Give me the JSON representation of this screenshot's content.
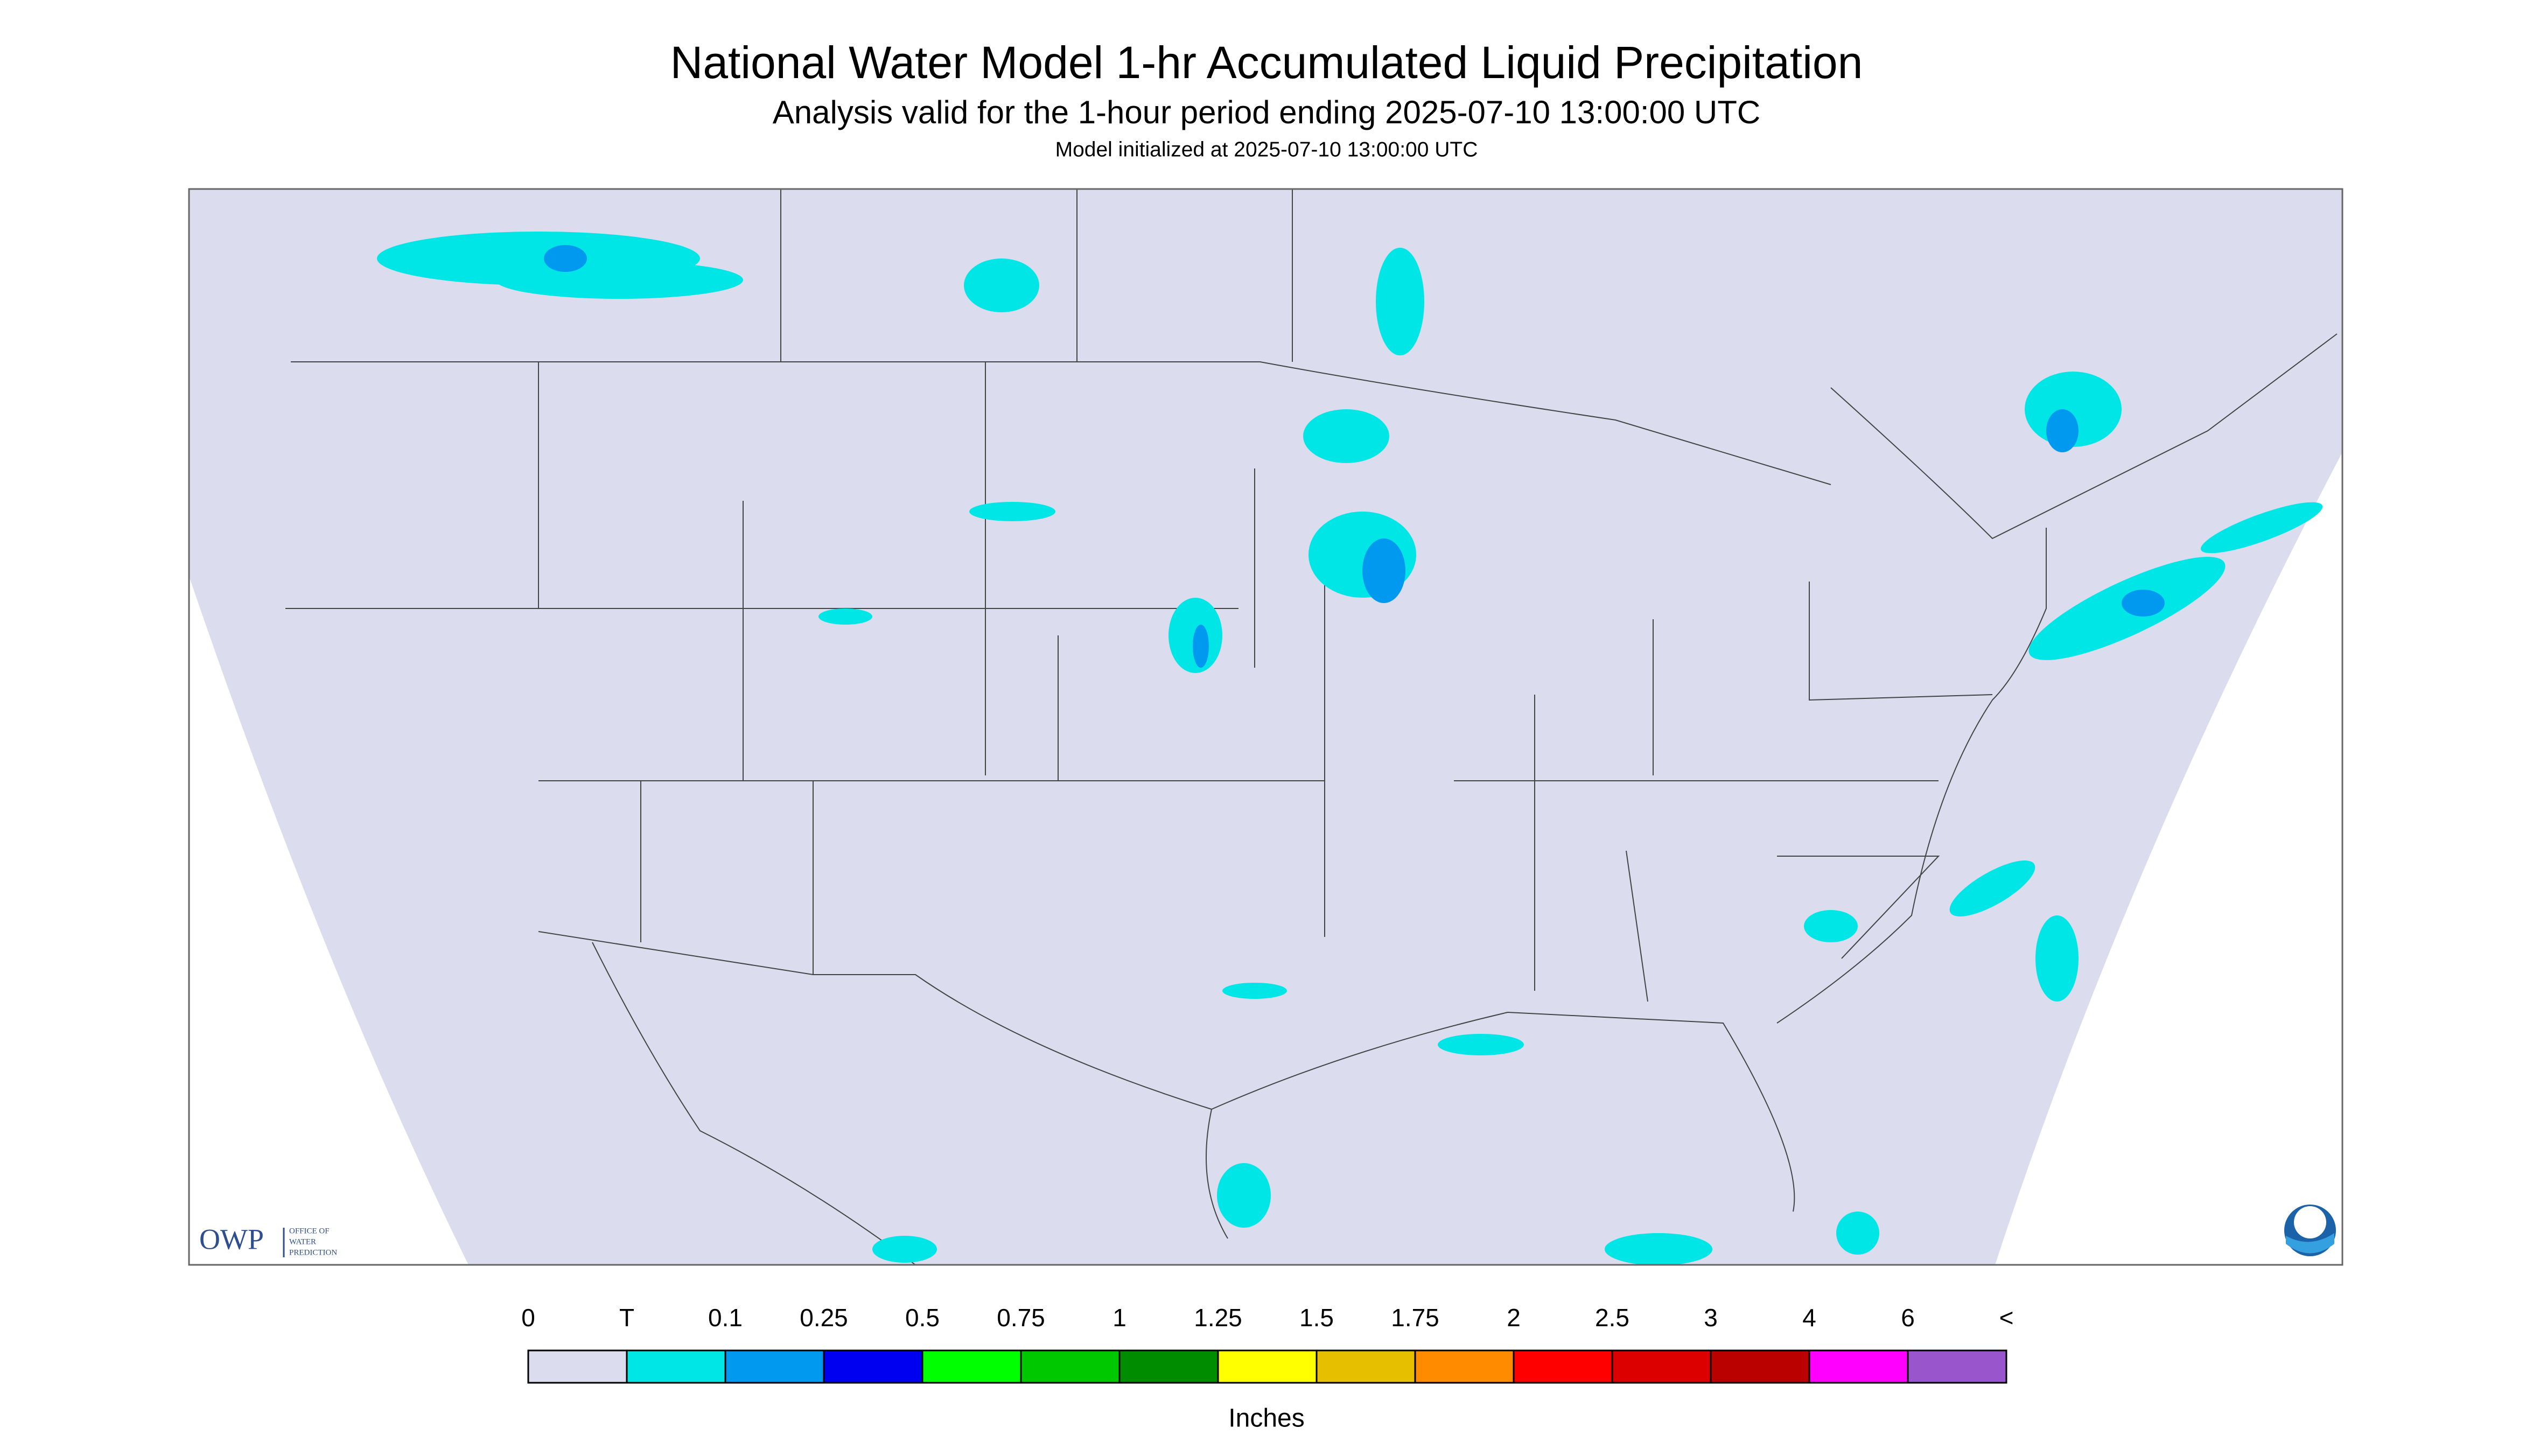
{
  "header": {
    "title": "National Water Model 1-hr Accumulated Liquid Precipitation",
    "subtitle": "Analysis valid for the 1-hour period ending 2025-07-10 13:00:00 UTC",
    "init": "Model initialized at 2025-07-10 13:00:00 UTC"
  },
  "logo": {
    "abbr": "OWP",
    "lines": [
      "OFFICE OF",
      "WATER",
      "PREDICTION"
    ]
  },
  "legend": {
    "labels": [
      "0",
      "T",
      "0.1",
      "0.25",
      "0.5",
      "0.75",
      "1",
      "1.25",
      "1.5",
      "1.75",
      "2",
      "2.5",
      "3",
      "4",
      "6",
      "<"
    ],
    "colors": [
      "#dcdcef",
      "#00e6e6",
      "#0099f0",
      "#0000f0",
      "#00ff00",
      "#00c800",
      "#008c00",
      "#ffff00",
      "#e6c000",
      "#ff8c00",
      "#ff0000",
      "#dd0000",
      "#bb0000",
      "#ff00ff",
      "#9955cc"
    ],
    "units": "Inches"
  }
}
